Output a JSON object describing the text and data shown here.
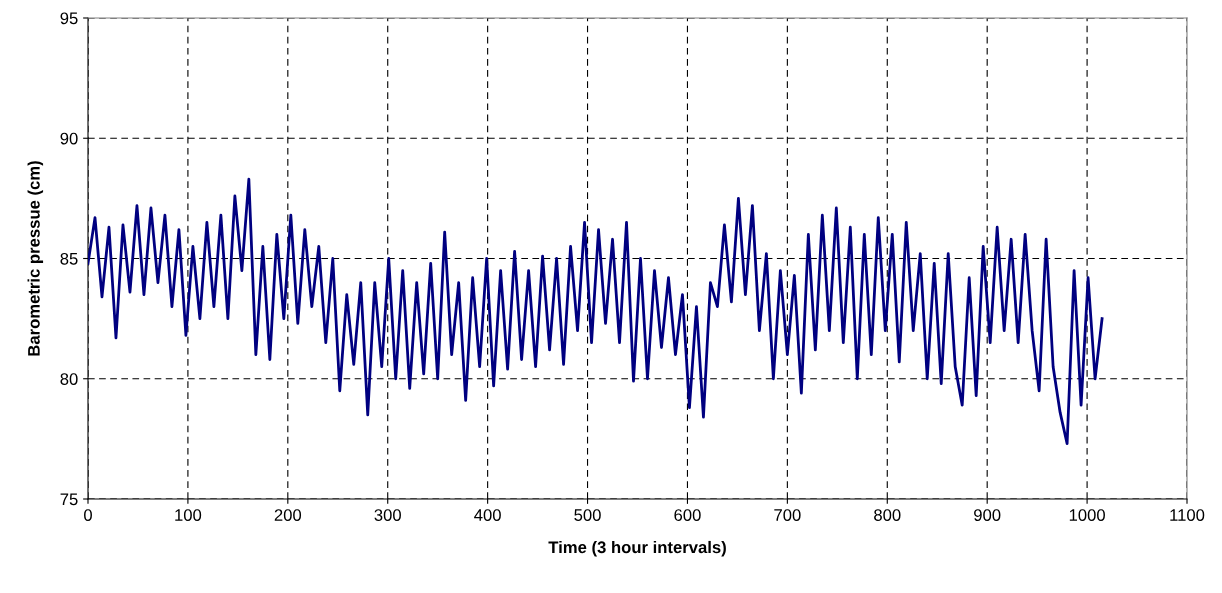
{
  "chart_data": {
    "type": "line",
    "xlabel": "Time (3 hour intervals)",
    "ylabel": "Barometric pressue (cm)",
    "x": [
      0,
      7,
      14,
      21,
      28,
      35,
      42,
      49,
      56,
      63,
      70,
      77,
      84,
      91,
      98,
      105,
      112,
      119,
      126,
      133,
      140,
      147,
      154,
      161,
      168,
      175,
      182,
      189,
      196,
      203,
      210,
      217,
      224,
      231,
      238,
      245,
      252,
      259,
      266,
      273,
      280,
      287,
      294,
      301,
      308,
      315,
      322,
      329,
      336,
      343,
      350,
      357,
      364,
      371,
      378,
      385,
      392,
      399,
      406,
      413,
      420,
      427,
      434,
      441,
      448,
      455,
      462,
      469,
      476,
      483,
      490,
      497,
      504,
      511,
      518,
      525,
      532,
      539,
      546,
      553,
      560,
      567,
      574,
      581,
      588,
      595,
      602,
      609,
      616,
      623,
      630,
      637,
      644,
      651,
      658,
      665,
      672,
      679,
      686,
      693,
      700,
      707,
      714,
      721,
      728,
      735,
      742,
      749,
      756,
      763,
      770,
      777,
      784,
      791,
      798,
      805,
      812,
      819,
      826,
      833,
      840,
      847,
      854,
      861,
      868,
      875,
      882,
      889,
      896,
      903,
      910,
      917,
      924,
      931,
      938,
      945,
      952,
      959,
      966,
      973,
      980,
      987,
      994,
      1001,
      1008,
      1015
    ],
    "series": [
      {
        "color": "#000080",
        "values": [
          84.8,
          86.7,
          83.4,
          86.3,
          81.7,
          86.4,
          83.6,
          87.2,
          83.5,
          87.1,
          84.0,
          86.8,
          83.0,
          86.2,
          81.8,
          85.5,
          82.5,
          86.5,
          83.0,
          86.8,
          82.5,
          87.6,
          84.5,
          88.3,
          81.0,
          85.5,
          80.8,
          86.0,
          82.5,
          86.8,
          82.3,
          86.2,
          83.0,
          85.5,
          81.5,
          85.0,
          79.5,
          83.5,
          80.6,
          84.0,
          78.5,
          84.0,
          80.5,
          85.0,
          80.0,
          84.5,
          79.6,
          84.0,
          80.2,
          84.8,
          80.0,
          86.1,
          81.0,
          84.0,
          79.1,
          84.2,
          80.5,
          85.0,
          79.7,
          84.5,
          80.4,
          85.3,
          80.8,
          84.5,
          80.5,
          85.1,
          81.2,
          85.0,
          80.6,
          85.5,
          82.0,
          86.5,
          81.5,
          86.2,
          82.3,
          85.8,
          81.5,
          86.5,
          79.9,
          85.0,
          80.0,
          84.5,
          81.3,
          84.2,
          81.0,
          83.5,
          78.8,
          83.0,
          78.4,
          84.0,
          83.0,
          86.4,
          83.2,
          87.5,
          83.5,
          87.2,
          82.0,
          85.2,
          80.0,
          84.5,
          81.0,
          84.3,
          79.4,
          86.0,
          81.2,
          86.8,
          82.0,
          87.1,
          81.5,
          86.3,
          80.0,
          86.0,
          81.0,
          86.7,
          82.0,
          86.0,
          80.7,
          86.5,
          82.0,
          85.2,
          80.0,
          84.8,
          79.8,
          85.2,
          80.5,
          78.9,
          84.2,
          79.3,
          85.5,
          81.5,
          86.3,
          82.0,
          85.8,
          81.5,
          86.0,
          82.0,
          79.5,
          85.8,
          80.5,
          78.6,
          77.3,
          84.5,
          78.9,
          84.2,
          80.0,
          82.5
        ]
      }
    ],
    "xlim": [
      0,
      1100
    ],
    "xticks": [
      0,
      100,
      200,
      300,
      400,
      500,
      600,
      700,
      800,
      900,
      1000,
      1100
    ],
    "ylim": [
      75,
      95
    ],
    "yticks": [
      75,
      80,
      85,
      90,
      95
    ],
    "grid": true,
    "marker": "none",
    "line_style": "solid"
  }
}
